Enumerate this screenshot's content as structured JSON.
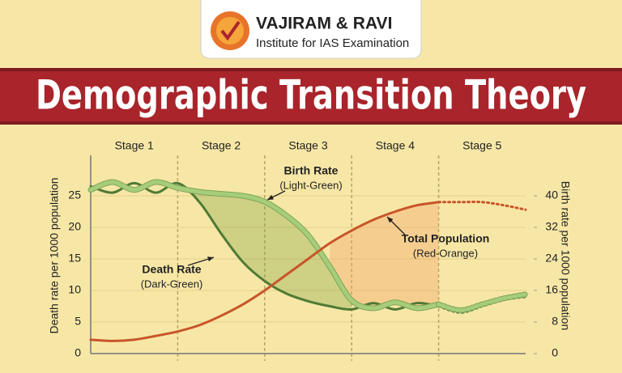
{
  "header": {
    "brand": "VAJIRAM & RAVI",
    "tagline": "Institute for IAS Examination"
  },
  "chart_data": {
    "type": "line",
    "title": "Demographic Transition Theory",
    "stages": [
      "Stage 1",
      "Stage 2",
      "Stage 3",
      "Stage 4",
      "Stage 5"
    ],
    "x": [
      0,
      0.25,
      0.5,
      0.75,
      1,
      1.25,
      1.5,
      1.75,
      2,
      2.25,
      2.5,
      2.75,
      3,
      3.25,
      3.5,
      3.75,
      4,
      4.25,
      4.5,
      4.75,
      5
    ],
    "xlim": [
      0,
      5
    ],
    "ylabel": "Death rate per 1000 population",
    "y2label": "Birth rate per 1000 population",
    "ylim": [
      0,
      30
    ],
    "yticks": [
      0,
      5,
      10,
      15,
      20,
      25
    ],
    "y2lim": [
      0,
      48
    ],
    "y2ticks": [
      0,
      8,
      16,
      24,
      32,
      40
    ],
    "grid": true,
    "series": [
      {
        "name": "Death Rate",
        "note": "(Dark-Green)",
        "color": "#4f7a35",
        "axis": "y",
        "values": [
          26.5,
          25.5,
          27,
          25.5,
          27,
          24,
          19,
          14.5,
          11.5,
          9.5,
          8.3,
          7.5,
          7,
          8,
          7,
          8,
          7.5,
          6.5,
          7.5,
          8.5,
          9
        ]
      },
      {
        "name": "Birth Rate",
        "note": "(Light-Green)",
        "color": "#a6cd7a",
        "axis": "y2",
        "values": [
          41.5,
          43.5,
          41.5,
          43.5,
          42,
          41,
          40.5,
          40,
          38.5,
          35,
          30,
          22,
          13.5,
          11.5,
          13,
          11.5,
          12.5,
          11,
          12.5,
          14,
          15
        ]
      },
      {
        "name": "Total Population",
        "note": "(Red-Orange)",
        "color": "#c8552a",
        "axis": "y",
        "values": [
          2.2,
          2,
          2.2,
          2.8,
          3.5,
          4.5,
          6,
          7.8,
          10,
          12.5,
          15,
          17.5,
          19.5,
          21.2,
          22.5,
          23.5,
          24,
          24,
          24,
          23.5,
          22.8
        ]
      }
    ]
  }
}
